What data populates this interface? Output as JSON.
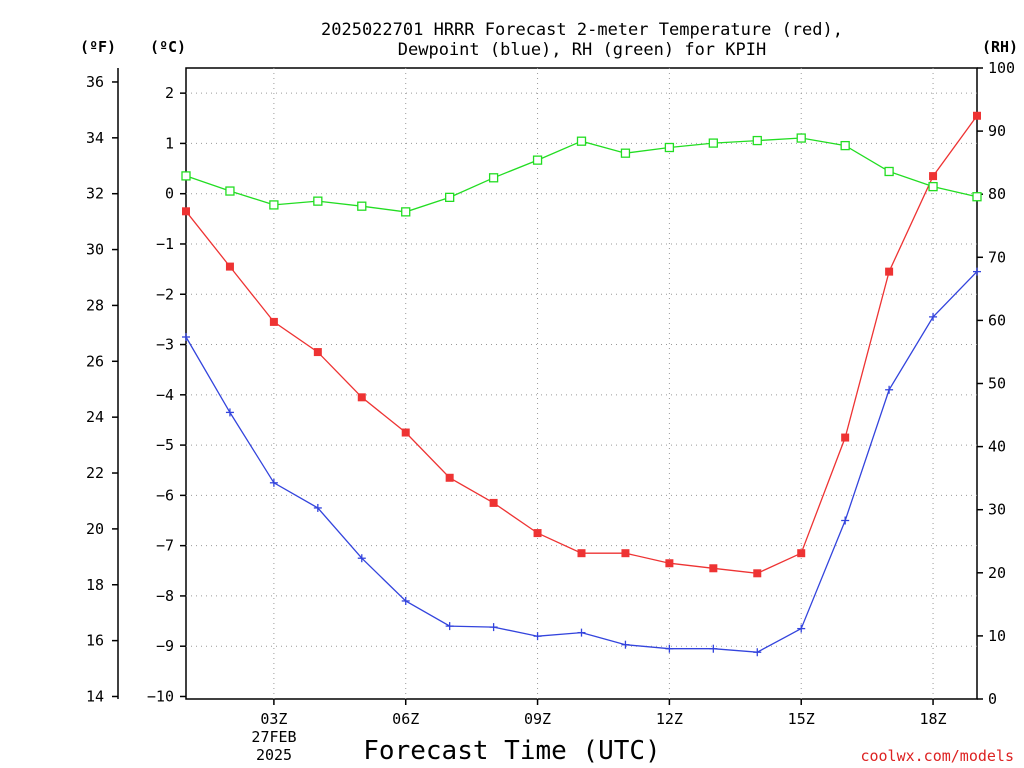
{
  "chart_data": {
    "type": "line",
    "title_line1": "2025022701 HRRR Forecast 2-meter Temperature (red),",
    "title_line2": "Dewpoint (blue), RH (green) for KPIH",
    "xlabel": "Forecast Time (UTC)",
    "unit_f": "(ºF)",
    "unit_c": "(ºC)",
    "unit_rh": "(RH)",
    "credit": "coolwx.com/models",
    "colors": {
      "temperature": "#ee3333",
      "dewpoint": "#3344dd",
      "rh": "#22dd22"
    },
    "grid": true,
    "x_hours": [
      1,
      2,
      3,
      4,
      5,
      6,
      7,
      8,
      9,
      10,
      11,
      12,
      13,
      14,
      15,
      16,
      17,
      18,
      19
    ],
    "xlim": [
      1,
      19
    ],
    "x_ticks": [
      {
        "hour": 3,
        "label": "03Z"
      },
      {
        "hour": 6,
        "label": "06Z"
      },
      {
        "hour": 9,
        "label": "09Z"
      },
      {
        "hour": 12,
        "label": "12Z"
      },
      {
        "hour": 15,
        "label": "15Z"
      },
      {
        "hour": 18,
        "label": "18Z"
      }
    ],
    "date_label_line1": "27FEB",
    "date_label_line2": "2025",
    "ylim_c": [
      -10.05,
      2.5
    ],
    "yticks_c": [
      2,
      1,
      0,
      -1,
      -2,
      -3,
      -4,
      -5,
      -6,
      -7,
      -8,
      -9,
      -10
    ],
    "yticks_f": [
      36,
      34,
      32,
      30,
      28,
      26,
      24,
      22,
      20,
      18,
      16,
      14
    ],
    "ylim_rh": [
      0,
      100
    ],
    "yticks_rh": [
      100,
      90,
      80,
      70,
      60,
      50,
      40,
      30,
      20,
      10,
      0
    ],
    "series": [
      {
        "key": "temperature",
        "axis": "c",
        "marker": "filled-square",
        "values": [
          -0.35,
          -1.45,
          -2.55,
          -3.15,
          -4.05,
          -4.75,
          -5.65,
          -6.15,
          -6.75,
          -7.15,
          -7.15,
          -7.35,
          -7.45,
          -7.55,
          -7.15,
          -4.85,
          -1.55,
          0.35,
          1.55
        ]
      },
      {
        "key": "dewpoint",
        "axis": "c",
        "marker": "plus",
        "values": [
          -2.85,
          -4.35,
          -5.75,
          -6.25,
          -7.25,
          -8.1,
          -8.6,
          -8.62,
          -8.8,
          -8.73,
          -8.97,
          -9.05,
          -9.05,
          -9.12,
          -8.65,
          -6.5,
          -3.9,
          -2.45,
          -1.55
        ]
      },
      {
        "key": "rh",
        "axis": "rh",
        "marker": "open-square",
        "values": [
          82.9,
          80.5,
          78.3,
          78.9,
          78.1,
          77.2,
          79.5,
          82.6,
          85.4,
          88.4,
          86.5,
          87.4,
          88.1,
          88.5,
          88.9,
          87.7,
          83.6,
          81.2,
          79.6
        ]
      }
    ]
  }
}
